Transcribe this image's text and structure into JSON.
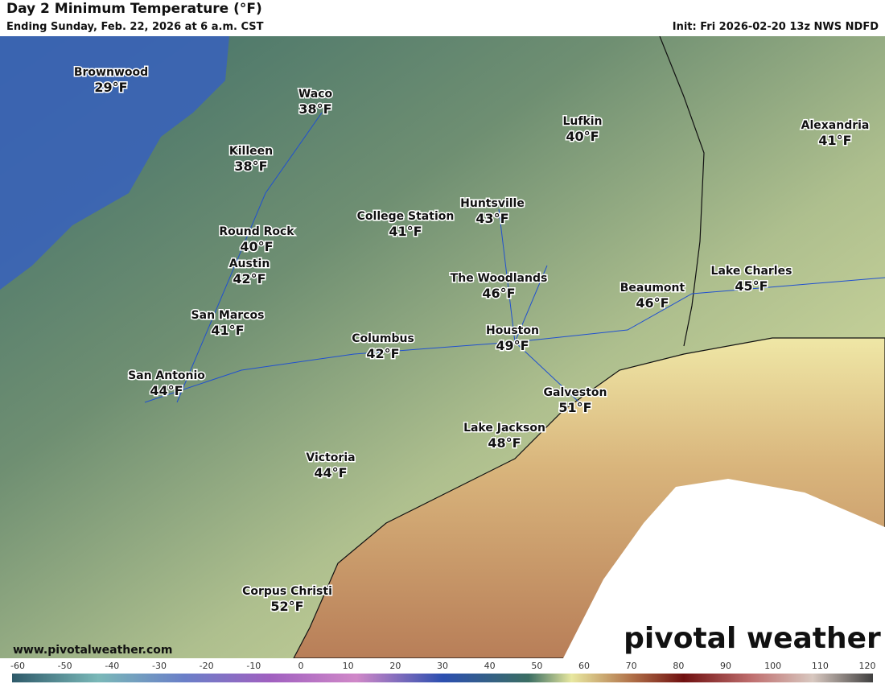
{
  "header": {
    "title": "Day 2 Minimum Temperature (°F)",
    "subtitle": "Ending Sunday, Feb. 22, 2026 at 6 a.m. CST",
    "init": "Init: Fri 2026-02-20 13z NWS NDFD"
  },
  "cities": [
    {
      "name": "Brownwood",
      "temp": "29°F"
    },
    {
      "name": "Waco",
      "temp": "38°F"
    },
    {
      "name": "Killeen",
      "temp": "38°F"
    },
    {
      "name": "Lufkin",
      "temp": "40°F"
    },
    {
      "name": "Alexandria",
      "temp": "41°F"
    },
    {
      "name": "Huntsville",
      "temp": "43°F"
    },
    {
      "name": "College Station",
      "temp": "41°F"
    },
    {
      "name": "Round Rock",
      "temp": "40°F"
    },
    {
      "name": "Austin",
      "temp": "42°F"
    },
    {
      "name": "The Woodlands",
      "temp": "46°F"
    },
    {
      "name": "Beaumont",
      "temp": "46°F"
    },
    {
      "name": "Lake Charles",
      "temp": "45°F"
    },
    {
      "name": "San Marcos",
      "temp": "41°F"
    },
    {
      "name": "Houston",
      "temp": "49°F"
    },
    {
      "name": "Columbus",
      "temp": "42°F"
    },
    {
      "name": "San Antonio",
      "temp": "44°F"
    },
    {
      "name": "Galveston",
      "temp": "51°F"
    },
    {
      "name": "Lake Jackson",
      "temp": "48°F"
    },
    {
      "name": "Victoria",
      "temp": "44°F"
    },
    {
      "name": "Corpus Christi",
      "temp": "52°F"
    }
  ],
  "footer": {
    "website": "www.pivotalweather.com",
    "logo": "pivotal weather"
  },
  "legend": {
    "ticks": [
      -60,
      -50,
      -40,
      -30,
      -20,
      -10,
      0,
      10,
      20,
      30,
      40,
      50,
      60,
      70,
      80,
      90,
      100,
      110,
      120
    ]
  }
}
